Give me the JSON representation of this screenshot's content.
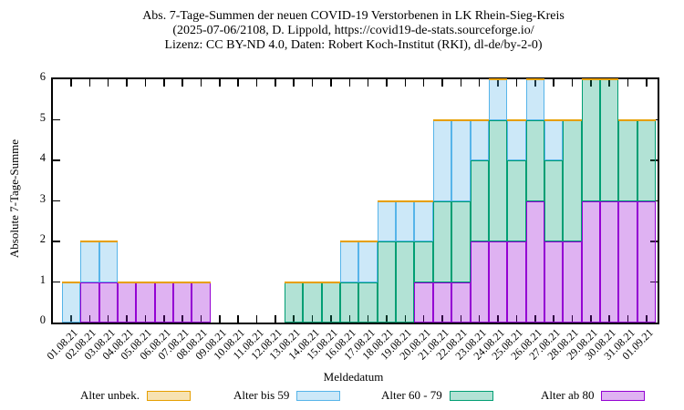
{
  "title": {
    "line1": "Abs. 7-Tage-Summen der neuen COVID-19 Verstorbenen in LK Rhein-Sieg-Kreis",
    "line2": "(2025-07-06/2108, D. Lippold, https://covid19-de-stats.sourceforge.io/",
    "line3": "Lizenz: CC BY-ND 4.0, Daten: Robert Koch-Institut (RKI), dl-de/by-2-0)"
  },
  "chart_data": {
    "type": "bar",
    "stacked": true,
    "title": "Abs. 7-Tage-Summen der neuen COVID-19 Verstorbenen in LK Rhein-Sieg-Kreis",
    "xlabel": "Meldedatum",
    "ylabel": "Absolute 7-Tage-Summe",
    "ylim": [
      0,
      6
    ],
    "yticks": [
      0,
      1,
      2,
      3,
      4,
      5,
      6
    ],
    "grid": false,
    "legend_position": "bottom",
    "categories": [
      "01.08.21",
      "02.08.21",
      "03.08.21",
      "04.08.21",
      "05.08.21",
      "06.08.21",
      "07.08.21",
      "08.08.21",
      "09.08.21",
      "10.08.21",
      "11.08.21",
      "12.08.21",
      "13.08.21",
      "14.08.21",
      "15.08.21",
      "16.08.21",
      "17.08.21",
      "18.08.21",
      "19.08.21",
      "20.08.21",
      "21.08.21",
      "22.08.21",
      "23.08.21",
      "24.08.21",
      "25.08.21",
      "26.08.21",
      "27.08.21",
      "28.08.21",
      "29.08.21",
      "30.08.21",
      "31.08.21",
      "01.09.21"
    ],
    "series": [
      {
        "name": "Alter ab 80",
        "color": "#9400D3",
        "values": [
          0,
          1,
          1,
          1,
          1,
          1,
          1,
          1,
          0,
          0,
          0,
          0,
          0,
          0,
          0,
          0,
          0,
          0,
          0,
          1,
          1,
          1,
          2,
          2,
          2,
          3,
          2,
          2,
          3,
          3,
          3,
          3
        ]
      },
      {
        "name": "Alter 60 - 79",
        "color": "#009E73",
        "values": [
          0,
          0,
          0,
          0,
          0,
          0,
          0,
          0,
          0,
          0,
          0,
          0,
          1,
          1,
          1,
          1,
          1,
          2,
          2,
          1,
          2,
          2,
          2,
          3,
          2,
          2,
          2,
          3,
          3,
          3,
          2,
          2
        ]
      },
      {
        "name": "Alter bis 59",
        "color": "#56B4E9",
        "values": [
          1,
          1,
          1,
          0,
          0,
          0,
          0,
          0,
          0,
          0,
          0,
          0,
          0,
          0,
          0,
          1,
          1,
          1,
          1,
          1,
          2,
          2,
          1,
          1,
          1,
          1,
          1,
          0,
          0,
          0,
          0,
          0
        ]
      },
      {
        "name": "Alter unbek.",
        "color": "#E69F00",
        "values": [
          0,
          0,
          0,
          0,
          0,
          0,
          0,
          0,
          0,
          0,
          0,
          0,
          0,
          0,
          0,
          0,
          0,
          0,
          0,
          0,
          0,
          0,
          0,
          0,
          0,
          0,
          0,
          0,
          0,
          0,
          0,
          0
        ]
      }
    ],
    "stack_order": "bottom-to-top as listed",
    "totals": [
      1,
      2,
      2,
      1,
      1,
      1,
      1,
      1,
      0,
      0,
      0,
      0,
      1,
      1,
      1,
      2,
      2,
      3,
      3,
      3,
      5,
      5,
      5,
      6,
      5,
      6,
      5,
      5,
      6,
      6,
      5,
      5
    ],
    "legend": [
      {
        "label": "Alter unbek.",
        "color": "#E69F00"
      },
      {
        "label": "Alter bis 59",
        "color": "#56B4E9"
      },
      {
        "label": "Alter 60 - 79",
        "color": "#009E73"
      },
      {
        "label": "Alter ab 80",
        "color": "#9400D3"
      }
    ],
    "axis_color": "#000000",
    "fill_opacity": 0.3
  }
}
